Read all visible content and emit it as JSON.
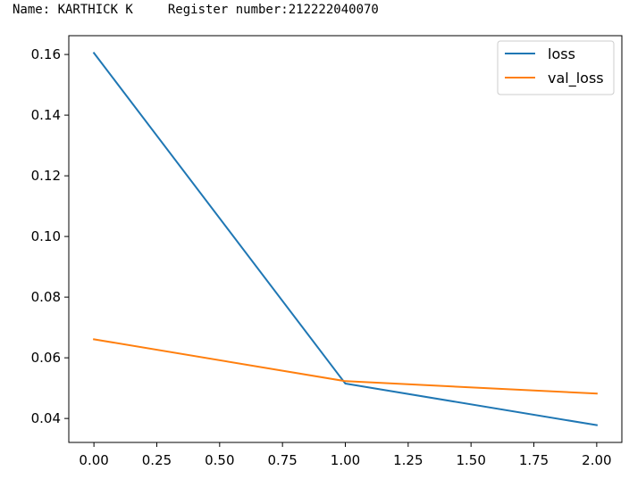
{
  "header": {
    "name_text": "Name: KARTHICK K",
    "register_text": "Register number:212222040070"
  },
  "chart_data": {
    "type": "line",
    "x": [
      0.0,
      1.0,
      2.0
    ],
    "series": [
      {
        "name": "loss",
        "values": [
          0.1605,
          0.0515,
          0.0378
        ],
        "color": "#1f77b4"
      },
      {
        "name": "val_loss",
        "values": [
          0.0661,
          0.0523,
          0.0482
        ],
        "color": "#ff7f0e"
      }
    ],
    "xticks": [
      0.0,
      0.25,
      0.5,
      0.75,
      1.0,
      1.25,
      1.5,
      1.75,
      2.0
    ],
    "xtick_labels": [
      "0.00",
      "0.25",
      "0.50",
      "0.75",
      "1.00",
      "1.25",
      "1.50",
      "1.75",
      "2.00"
    ],
    "yticks": [
      0.04,
      0.06,
      0.08,
      0.1,
      0.12,
      0.14,
      0.16
    ],
    "ytick_labels": [
      "0.04",
      "0.06",
      "0.08",
      "0.10",
      "0.12",
      "0.14",
      "0.16"
    ],
    "xlim": [
      -0.1,
      2.1
    ],
    "ylim": [
      0.0321,
      0.1662
    ],
    "grid": false,
    "legend_position": "top-right",
    "title": "",
    "xlabel": "",
    "ylabel": ""
  }
}
